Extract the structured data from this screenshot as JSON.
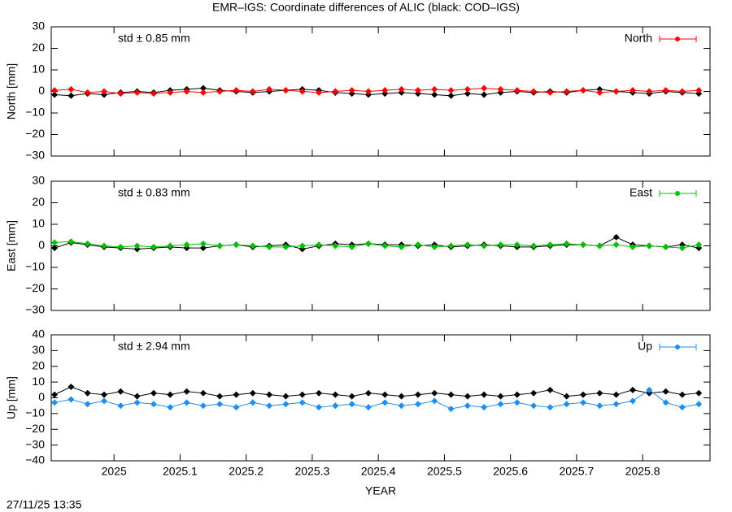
{
  "chart_data": [
    {
      "type": "line",
      "title": "EMR–IGS: Coordinate differences of ALIC (black: COD–IGS)",
      "ylabel": "North [mm]",
      "annotation": "std ± 0.85 mm",
      "xlim": [
        2024.905,
        2025.902
      ],
      "ylim": [
        -30,
        30
      ],
      "yticks": [
        {
          "value": -30,
          "label": "−30"
        },
        {
          "value": -20,
          "label": "−20"
        },
        {
          "value": -10,
          "label": "−10"
        },
        0,
        10,
        20,
        30
      ],
      "x": [
        2024.91,
        2024.935,
        2024.96,
        2024.985,
        2025.01,
        2025.035,
        2025.06,
        2025.085,
        2025.11,
        2025.135,
        2025.16,
        2025.185,
        2025.21,
        2025.235,
        2025.26,
        2025.285,
        2025.31,
        2025.335,
        2025.36,
        2025.385,
        2025.41,
        2025.435,
        2025.46,
        2025.485,
        2025.51,
        2025.535,
        2025.56,
        2025.585,
        2025.61,
        2025.635,
        2025.66,
        2025.685,
        2025.71,
        2025.735,
        2025.76,
        2025.785,
        2025.81,
        2025.835,
        2025.86,
        2025.885
      ],
      "series": [
        {
          "color": "#000000",
          "values": [
            -1.5,
            -2,
            -1,
            -1.5,
            -0.5,
            0,
            -0.5,
            0.5,
            1,
            1.5,
            0.5,
            0,
            -0.5,
            0,
            0.5,
            1,
            0.5,
            -0.5,
            -1,
            -1.5,
            -1,
            -0.5,
            -1,
            -1.5,
            -2,
            -1,
            -1.5,
            -0.5,
            0,
            -0.5,
            0,
            -0.5,
            0.5,
            1,
            0,
            -0.5,
            -1,
            0,
            -0.5,
            -1
          ]
        },
        {
          "name": "North",
          "color": "#ff0000",
          "values": [
            0.5,
            1,
            -0.5,
            0,
            -1,
            -0.5,
            -1,
            -0.5,
            0,
            -0.5,
            0,
            0.5,
            0,
            1,
            0.5,
            0,
            -0.5,
            0,
            0.5,
            0,
            0.5,
            1,
            0.5,
            1,
            0.5,
            1,
            1.5,
            1,
            0.5,
            0,
            -0.5,
            0,
            0.5,
            -0.5,
            0,
            0.5,
            0,
            0.5,
            0,
            0.5
          ]
        }
      ]
    },
    {
      "type": "line",
      "ylabel": "East [mm]",
      "annotation": "std ± 0.83 mm",
      "xlim": [
        2024.905,
        2025.902
      ],
      "ylim": [
        -30,
        30
      ],
      "yticks": [
        {
          "value": -30,
          "label": "−30"
        },
        {
          "value": -20,
          "label": "−20"
        },
        {
          "value": -10,
          "label": "−10"
        },
        0,
        10,
        20,
        30
      ],
      "x": [
        2024.91,
        2024.935,
        2024.96,
        2024.985,
        2025.01,
        2025.035,
        2025.06,
        2025.085,
        2025.11,
        2025.135,
        2025.16,
        2025.185,
        2025.21,
        2025.235,
        2025.26,
        2025.285,
        2025.31,
        2025.335,
        2025.36,
        2025.385,
        2025.41,
        2025.435,
        2025.46,
        2025.485,
        2025.51,
        2025.535,
        2025.56,
        2025.585,
        2025.61,
        2025.635,
        2025.66,
        2025.685,
        2025.71,
        2025.735,
        2025.76,
        2025.785,
        2025.81,
        2025.835,
        2025.86,
        2025.885
      ],
      "series": [
        {
          "color": "#000000",
          "values": [
            -1,
            1.5,
            0.5,
            -0.5,
            -1,
            -1.5,
            -1,
            -0.5,
            -1,
            -1,
            0,
            0.5,
            -0.5,
            0,
            0.5,
            -1.5,
            0,
            1,
            0.5,
            1,
            0.5,
            0.5,
            0,
            0.5,
            -0.5,
            0,
            0.5,
            0,
            -0.5,
            -0.5,
            0,
            0.5,
            0.5,
            0,
            4,
            0.5,
            0,
            -0.5,
            0.5,
            -1
          ]
        },
        {
          "name": "East",
          "color": "#00c000",
          "values": [
            1.5,
            2,
            1,
            0,
            -0.5,
            0,
            -0.5,
            0,
            0.5,
            1,
            0,
            0.5,
            0,
            -0.5,
            -0.5,
            0,
            0.5,
            0,
            -0.5,
            1,
            0,
            -0.5,
            0.5,
            -0.5,
            0,
            0.5,
            0,
            0.5,
            0.5,
            0,
            0.5,
            1,
            0.5,
            0,
            0.5,
            -0.5,
            0,
            -0.5,
            -1,
            0.5
          ]
        }
      ]
    },
    {
      "type": "line",
      "ylabel": "Up [mm]",
      "annotation": "std ± 2.94 mm",
      "xlabel": "YEAR",
      "xlim": [
        2024.905,
        2025.902
      ],
      "ylim": [
        -40,
        40
      ],
      "xticks": [
        2025,
        2025.1,
        2025.2,
        2025.3,
        2025.4,
        2025.5,
        2025.6,
        2025.7,
        2025.8
      ],
      "yticks": [
        {
          "value": -40,
          "label": "−40"
        },
        {
          "value": -30,
          "label": "−30"
        },
        {
          "value": -20,
          "label": "−20"
        },
        {
          "value": -10,
          "label": "−10"
        },
        0,
        10,
        20,
        30,
        40
      ],
      "x": [
        2024.91,
        2024.935,
        2024.96,
        2024.985,
        2025.01,
        2025.035,
        2025.06,
        2025.085,
        2025.11,
        2025.135,
        2025.16,
        2025.185,
        2025.21,
        2025.235,
        2025.26,
        2025.285,
        2025.31,
        2025.335,
        2025.36,
        2025.385,
        2025.41,
        2025.435,
        2025.46,
        2025.485,
        2025.51,
        2025.535,
        2025.56,
        2025.585,
        2025.61,
        2025.635,
        2025.66,
        2025.685,
        2025.71,
        2025.735,
        2025.76,
        2025.785,
        2025.81,
        2025.835,
        2025.86,
        2025.885
      ],
      "series": [
        {
          "color": "#000000",
          "values": [
            2,
            7,
            3,
            2,
            4,
            1,
            3,
            2,
            4,
            3,
            1,
            2,
            3,
            2,
            1,
            2,
            3,
            2,
            1,
            3,
            2,
            1,
            2,
            3,
            2,
            1,
            2,
            1,
            2,
            3,
            5,
            1,
            2,
            3,
            2,
            5,
            3,
            4,
            2,
            3
          ]
        },
        {
          "name": "Up",
          "color": "#1e8ff0",
          "values": [
            -3,
            -1,
            -4,
            -2,
            -5,
            -3,
            -4,
            -6,
            -3,
            -5,
            -4,
            -6,
            -3,
            -5,
            -4,
            -3,
            -6,
            -5,
            -4,
            -6,
            -3,
            -5,
            -4,
            -2,
            -7,
            -5,
            -6,
            -4,
            -3,
            -5,
            -6,
            -4,
            -3,
            -5,
            -4,
            -2,
            5,
            -3,
            -6,
            -4
          ]
        }
      ]
    }
  ],
  "timestamp": "27/11/25 13:35"
}
